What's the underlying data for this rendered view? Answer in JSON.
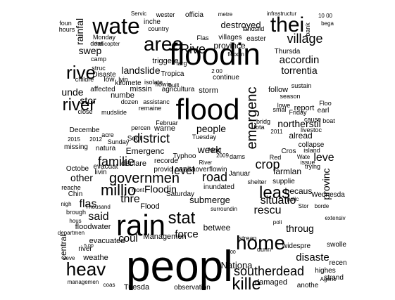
{
  "words": [
    "peopl",
    "floodin",
    "flood",
    "rain",
    "wate",
    "area",
    "home",
    "thei",
    "rive",
    "heav",
    "river",
    "kille",
    "leas",
    "stat",
    "millio",
    "governmen",
    "district",
    "level",
    "southerdead",
    "village",
    "crop",
    "rescu",
    "situatio",
    "familie",
    "road",
    "Rive",
    "emergenc",
    "landslide",
    "people",
    "Floodin",
    "thre",
    "said",
    "flas",
    "coul",
    "force",
    "disaste",
    "northerstil",
    "accordin",
    "torrentia",
    "Nationa",
    "leve",
    "provinc",
    "destroyed",
    "rainfal",
    "swep",
    "unde",
    "stor",
    "other",
    "submerge",
    "week",
    "Flood",
    "betwee",
    "central",
    "throug",
    "evacuated",
    "floodwater",
    "Managemen",
    "damaged",
    "highes",
    "Tuesda",
    "observation",
    "Emergenc",
    "report",
    "follow",
    "villages",
    "landslid",
    "province",
    "country",
    "season",
    "Monday",
    "farmlan",
    "becaus",
    "alread",
    "Wednesda",
    "affected",
    "missing",
    "Decembe",
    "Octobe",
    "Februar",
    "inundated",
    "Saturday",
    "Thursda",
    "Tropica",
    "kilomete",
    "river",
    "easter",
    "weathe",
    "collapse",
    "storm",
    "agricultura",
    "overflowin",
    "capita",
    "recorde",
    "declare",
    "provid",
    "evacuat",
    "livin",
    "natura",
    "Typhoo",
    "Januar",
    "shelter",
    "supplie",
    "swolle",
    "widespre",
    "recen",
    "anothe",
    "strand",
    "strean",
    "sustain",
    "Sunday",
    "Friday",
    "Tuesday",
    "flowin",
    "cause",
    "hours",
    "foun",
    "deat",
    "camp",
    "helicopter",
    "struc",
    "childre",
    "low",
    "lyin",
    "isolate",
    "numbe",
    "missin",
    "mudslide",
    "close",
    "dozen",
    "assistanc",
    "remaine",
    "percen",
    "warne",
    "Cros",
    "Red",
    "issue",
    "trying",
    "livestoc",
    "dams",
    "triggere",
    "larg",
    "Servic",
    "inche",
    "officia",
    "wester",
    "metre",
    "infrastructur",
    "10 00",
    "bega",
    "bank",
    "2015",
    "2012",
    "2011",
    "2009",
    "2 00",
    "3 00",
    "5 00",
    "acre",
    "bridg",
    "continue",
    "durin",
    "polic",
    "Stor",
    "borde",
    "Agenc",
    "Wate",
    "Floo",
    "Flas",
    "Chin",
    "Thousand",
    "Sout",
    "Nort",
    "River",
    "nigh",
    "brough",
    "hous",
    "reache",
    "departmen",
    "seve",
    "coas",
    "managemen",
    "poli",
    "built",
    "Disaste",
    "surroundin",
    "tota",
    "lowe",
    "smal",
    "floodin",
    "island",
    "earl",
    "boat",
    "mont",
    "extensiv"
  ],
  "colors": {
    "text": "#000000",
    "background": "#ffffff"
  }
}
